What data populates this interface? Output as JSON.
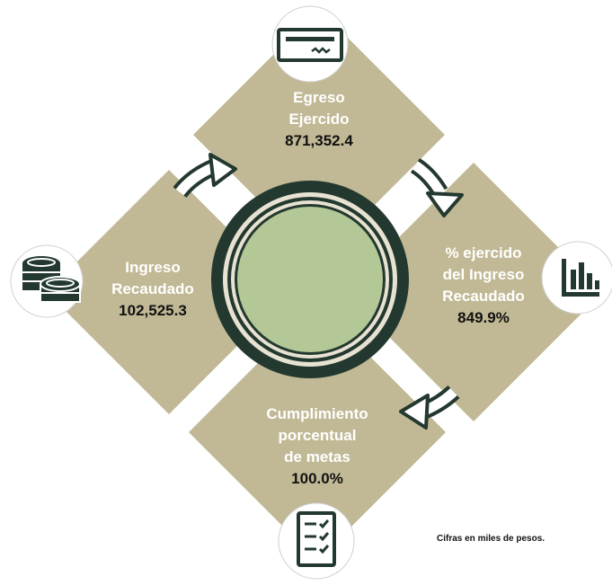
{
  "colors": {
    "panel": "#c1b995",
    "dark": "#233930",
    "center_fill": "#b4c796",
    "ring_light": "#e8e2d2",
    "icon_bg": "#ffffff",
    "label_text": "#ffffff",
    "value_text": "#111111"
  },
  "panels": {
    "top": {
      "line1": "Egreso",
      "line2": "Ejercido",
      "value": "871,352.4",
      "icon": "check-bill-icon"
    },
    "right": {
      "line1": "% ejercido",
      "line2": "del Ingreso",
      "line3": "Recaudado",
      "value": "849.9%",
      "icon": "bar-chart-icon"
    },
    "bottom": {
      "line1": "Cumplimiento",
      "line2": "porcentual",
      "line3": "de metas",
      "value": "100.0%",
      "icon": "checklist-icon"
    },
    "left": {
      "line1": "Ingreso",
      "line2": "Recaudado",
      "value": "102,525.3",
      "icon": "coins-icon"
    }
  },
  "footnote": "Cifras en miles de pesos."
}
